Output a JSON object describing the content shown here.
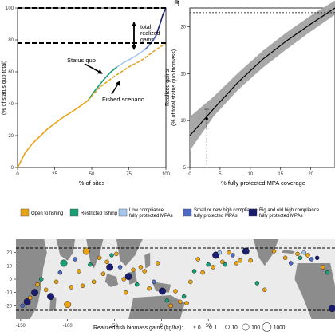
{
  "panel_b_label": "B",
  "colors": {
    "open_to_fishing": "#E8A317",
    "restricted_fishing": "#1A9E77",
    "low_compliance": "#A6C8EE",
    "small_or_new": "#4D6BC4",
    "big_and_old": "#1A1C6E",
    "ribbon": "#A8A8A8",
    "land": "#8C8C8C",
    "ocean": "#EBEBEB",
    "panel_bg": "#EBEBEB"
  },
  "panel_a": {
    "annotations": {
      "total_gains": "total\nrealized\ngains",
      "status_quo": "Status quo",
      "fished_scenario": "Fished scenario"
    }
  },
  "legend_a": {
    "items": [
      {
        "label": "Open to fishing",
        "color_key": "open_to_fishing"
      },
      {
        "label": "Restricted fishing",
        "color_key": "restricted_fishing"
      },
      {
        "label": "Low compliance\nfully protected MPAs",
        "color_key": "low_compliance"
      },
      {
        "label": "Small or new high compliance\nfully protected MPAs",
        "color_key": "small_or_new"
      },
      {
        "label": "Big and old high compliance\nfully protected MPAs",
        "color_key": "big_and_old"
      }
    ]
  },
  "map_legend": {
    "title": "Realized fish biomass gains (kg/ha):",
    "sizes": [
      {
        "label": "0",
        "value": 0
      },
      {
        "label": "1",
        "value": 1
      },
      {
        "label": "10",
        "value": 10
      },
      {
        "label": "100",
        "value": 100
      },
      {
        "label": "1000",
        "value": 1000
      }
    ]
  },
  "chart_data": [
    {
      "type": "line",
      "xlabel": "% of sites",
      "ylabel": "(% of status quo total)",
      "xlim": [
        0,
        100
      ],
      "ylim": [
        0,
        100
      ],
      "xticks": [
        0,
        25,
        50,
        75,
        100
      ],
      "yticks": [
        0,
        20,
        40,
        60,
        80,
        100
      ],
      "reference_lines": [
        {
          "y": 100,
          "style": "dashed"
        },
        {
          "y": 78,
          "style": "dashed"
        }
      ],
      "series": [
        {
          "color_key": "open_to_fishing",
          "x": [
            0,
            5,
            10,
            20,
            30,
            40,
            47.5
          ],
          "y": [
            0,
            9,
            15,
            24,
            31,
            37,
            42
          ]
        },
        {
          "color_key": "restricted_fishing",
          "x": [
            47.5,
            52,
            58,
            63,
            67
          ],
          "y": [
            42,
            48,
            55,
            60,
            63
          ]
        },
        {
          "color_key": "low_compliance",
          "x": [
            67,
            72,
            78,
            83,
            86
          ],
          "y": [
            63,
            66,
            69,
            72,
            74
          ]
        },
        {
          "color_key": "small_or_new",
          "x": [
            86,
            88,
            90,
            93
          ],
          "y": [
            74,
            76,
            78,
            82
          ]
        },
        {
          "color_key": "big_and_old",
          "x": [
            93,
            96,
            98,
            100
          ],
          "y": [
            82,
            90,
            96,
            100
          ]
        },
        {
          "color_key": "open_to_fishing",
          "style": "dashed",
          "x": [
            47.5,
            55,
            65,
            75,
            85,
            92,
            100
          ],
          "y": [
            42,
            50,
            57,
            63,
            68,
            73,
            78
          ]
        }
      ]
    },
    {
      "type": "line",
      "xlabel": "% fully protected MPA coverage",
      "ylabel": "Realized gains\n(% of total status quo biomass)",
      "xlim": [
        0,
        24
      ],
      "ylim": [
        5,
        22
      ],
      "xticks": [
        0,
        5,
        10,
        15,
        20
      ],
      "yticks": [
        5,
        10,
        15,
        20
      ],
      "reference_lines": [
        {
          "y": 21.5,
          "style": "dotted"
        },
        {
          "x": 2.8,
          "style": "dotted"
        }
      ],
      "ribbon": {
        "x": [
          0,
          4,
          8,
          12,
          16,
          20,
          24
        ],
        "lower": [
          6.8,
          10.5,
          13.3,
          15.6,
          17.6,
          19.5,
          21.3
        ],
        "upper": [
          10.4,
          12.6,
          15.1,
          17.4,
          19.4,
          21.2,
          22.8
        ]
      },
      "series": [
        {
          "color_key": "black",
          "x": [
            0,
            4,
            8,
            12,
            16,
            20,
            24
          ],
          "y": [
            8.4,
            11.3,
            14.1,
            16.5,
            18.5,
            20.3,
            22.0
          ]
        }
      ],
      "point": {
        "x": 2.8,
        "y": 10.2,
        "err_low": 9.2,
        "err_high": 11.2
      }
    },
    {
      "type": "scatter",
      "xlim": [
        -155,
        185
      ],
      "ylim": [
        -30,
        30
      ],
      "xticks": [
        -150,
        -100,
        -50,
        0,
        50
      ],
      "yticks": [
        -20,
        -10,
        0,
        10,
        20
      ],
      "reference_lines": [
        {
          "y": 23.4,
          "style": "dashed"
        },
        {
          "y": -23.4,
          "style": "dashed"
        }
      ],
      "points": [
        {
          "lon": -148,
          "lat": -20,
          "size": 10,
          "color_key": "small_or_new"
        },
        {
          "lon": -143,
          "lat": -17,
          "size": 100,
          "color_key": "big_and_old"
        },
        {
          "lon": -140,
          "lat": -14,
          "size": 10,
          "color_key": "open_to_fishing"
        },
        {
          "lon": -135,
          "lat": -10,
          "size": 100,
          "color_key": "big_and_old"
        },
        {
          "lon": -132,
          "lat": -4,
          "size": 10,
          "color_key": "open_to_fishing"
        },
        {
          "lon": -128,
          "lat": 0,
          "size": 10,
          "color_key": "restricted_fishing"
        },
        {
          "lon": -123,
          "lat": -8,
          "size": 10,
          "color_key": "open_to_fishing"
        },
        {
          "lon": -118,
          "lat": -13,
          "size": 100,
          "color_key": "big_and_old"
        },
        {
          "lon": -112,
          "lat": -2,
          "size": 10,
          "color_key": "open_to_fishing"
        },
        {
          "lon": -108,
          "lat": 5,
          "size": 10,
          "color_key": "small_or_new"
        },
        {
          "lon": -104,
          "lat": 12,
          "size": 100,
          "color_key": "restricted_fishing"
        },
        {
          "lon": -100,
          "lat": -19,
          "size": 100,
          "color_key": "open_to_fishing"
        },
        {
          "lon": -96,
          "lat": -6,
          "size": 10,
          "color_key": "open_to_fishing"
        },
        {
          "lon": -92,
          "lat": 15,
          "size": 10,
          "color_key": "small_or_new"
        },
        {
          "lon": -88,
          "lat": 6,
          "size": 10,
          "color_key": "open_to_fishing"
        },
        {
          "lon": -84,
          "lat": -5,
          "size": 10,
          "color_key": "open_to_fishing"
        },
        {
          "lon": -80,
          "lat": 21,
          "size": 100,
          "color_key": "open_to_fishing"
        },
        {
          "lon": -76,
          "lat": 11,
          "size": 10,
          "color_key": "restricted_fishing"
        },
        {
          "lon": -72,
          "lat": -2,
          "size": 10,
          "color_key": "open_to_fishing"
        },
        {
          "lon": -66,
          "lat": 16,
          "size": 10,
          "color_key": "open_to_fishing"
        },
        {
          "lon": -62,
          "lat": 4,
          "size": 10,
          "color_key": "open_to_fishing"
        },
        {
          "lon": -58,
          "lat": 13,
          "size": 10,
          "color_key": "open_to_fishing"
        },
        {
          "lon": -55,
          "lat": 9,
          "size": 100,
          "color_key": "big_and_old"
        },
        {
          "lon": -53,
          "lat": 18,
          "size": 10,
          "color_key": "restricted_fishing"
        },
        {
          "lon": -48,
          "lat": 19,
          "size": 10,
          "color_key": "open_to_fishing"
        },
        {
          "lon": -44,
          "lat": 9,
          "size": 10,
          "color_key": "small_or_new"
        },
        {
          "lon": -40,
          "lat": 0,
          "size": 10,
          "color_key": "open_to_fishing"
        },
        {
          "lon": -38,
          "lat": -10,
          "size": 10,
          "color_key": "open_to_fishing"
        },
        {
          "lon": -35,
          "lat": 2,
          "size": 100,
          "color_key": "big_and_old"
        },
        {
          "lon": -30,
          "lat": 7,
          "size": 10,
          "color_key": "open_to_fishing"
        },
        {
          "lon": -26,
          "lat": -4,
          "size": 10,
          "color_key": "restricted_fishing"
        },
        {
          "lon": -22,
          "lat": 9,
          "size": 10,
          "color_key": "open_to_fishing"
        },
        {
          "lon": -18,
          "lat": 6,
          "size": 10,
          "color_key": "open_to_fishing"
        },
        {
          "lon": -13,
          "lat": -7,
          "size": 10,
          "color_key": "open_to_fishing"
        },
        {
          "lon": -8,
          "lat": -2,
          "size": 10,
          "color_key": "small_or_new"
        },
        {
          "lon": -4,
          "lat": 12,
          "size": 10,
          "color_key": "open_to_fishing"
        },
        {
          "lon": 1,
          "lat": -9,
          "size": 100,
          "color_key": "big_and_old"
        },
        {
          "lon": 6,
          "lat": -16,
          "size": 10,
          "color_key": "restricted_fishing"
        },
        {
          "lon": 10,
          "lat": -20,
          "size": 10,
          "color_key": "open_to_fishing"
        },
        {
          "lon": 15,
          "lat": -9,
          "size": 10,
          "color_key": "open_to_fishing"
        },
        {
          "lon": 20,
          "lat": -17,
          "size": 10,
          "color_key": "open_to_fishing"
        },
        {
          "lon": 24,
          "lat": -13,
          "size": 10,
          "color_key": "restricted_fishing"
        },
        {
          "lon": 27,
          "lat": -18,
          "size": 10,
          "color_key": "open_to_fishing"
        },
        {
          "lon": 31,
          "lat": -2,
          "size": 10,
          "color_key": "open_to_fishing"
        },
        {
          "lon": 35,
          "lat": 6,
          "size": 10,
          "color_key": "restricted_fishing"
        },
        {
          "lon": 39,
          "lat": 15,
          "size": 10,
          "color_key": "open_to_fishing"
        },
        {
          "lon": 44,
          "lat": 5,
          "size": 10,
          "color_key": "open_to_fishing"
        },
        {
          "lon": 50,
          "lat": 11,
          "size": 10,
          "color_key": "restricted_fishing"
        },
        {
          "lon": 55,
          "lat": 9,
          "size": 10,
          "color_key": "open_to_fishing"
        },
        {
          "lon": 58,
          "lat": 18,
          "size": 100,
          "color_key": "big_and_old"
        },
        {
          "lon": 62,
          "lat": 20,
          "size": 10,
          "color_key": "low_compliance"
        },
        {
          "lon": 65,
          "lat": 13,
          "size": 10,
          "color_key": "open_to_fishing"
        },
        {
          "lon": 68,
          "lat": 11,
          "size": 10,
          "color_key": "restricted_fishing"
        },
        {
          "lon": 72,
          "lat": 20,
          "size": 10,
          "color_key": "open_to_fishing"
        },
        {
          "lon": 76,
          "lat": 18,
          "size": 10,
          "color_key": "small_or_new"
        },
        {
          "lon": 80,
          "lat": 12,
          "size": 10,
          "color_key": "open_to_fishing"
        },
        {
          "lon": 84,
          "lat": 14,
          "size": 10,
          "color_key": "open_to_fishing"
        },
        {
          "lon": 90,
          "lat": 21,
          "size": 100,
          "color_key": "big_and_old"
        },
        {
          "lon": 95,
          "lat": 14,
          "size": 10,
          "color_key": "open_to_fishing"
        },
        {
          "lon": 102,
          "lat": -3,
          "size": 10,
          "color_key": "restricted_fishing"
        },
        {
          "lon": 110,
          "lat": -8,
          "size": 10,
          "color_key": "open_to_fishing"
        },
        {
          "lon": 120,
          "lat": 21,
          "size": 10,
          "color_key": "open_to_fishing"
        },
        {
          "lon": 132,
          "lat": 16,
          "size": 10,
          "color_key": "open_to_fishing"
        },
        {
          "lon": 138,
          "lat": 12,
          "size": 10,
          "color_key": "small_or_new"
        },
        {
          "lon": 145,
          "lat": 19,
          "size": 10,
          "color_key": "open_to_fishing"
        },
        {
          "lon": 148,
          "lat": 16,
          "size": 10,
          "color_key": "restricted_fishing"
        },
        {
          "lon": 152,
          "lat": 20,
          "size": 10,
          "color_key": "low_compliance"
        },
        {
          "lon": 156,
          "lat": 18,
          "size": 10,
          "color_key": "open_to_fishing"
        },
        {
          "lon": 160,
          "lat": 15,
          "size": 10,
          "color_key": "small_or_new"
        },
        {
          "lon": 166,
          "lat": 16,
          "size": 10,
          "color_key": "big_and_old"
        },
        {
          "lon": 172,
          "lat": 9,
          "size": 10,
          "color_key": "open_to_fishing"
        },
        {
          "lon": 177,
          "lat": 5,
          "size": 10,
          "color_key": "restricted_fishing"
        },
        {
          "lon": 182,
          "lat": -22,
          "size": 100,
          "color_key": "big_and_old"
        }
      ]
    }
  ]
}
